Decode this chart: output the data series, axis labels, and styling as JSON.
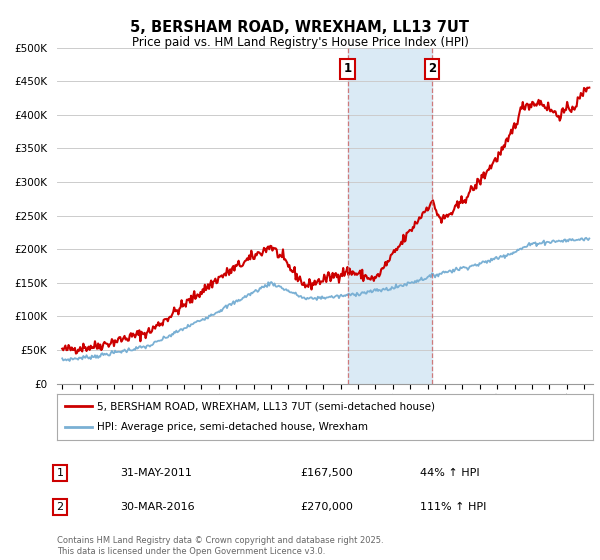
{
  "title": "5, BERSHAM ROAD, WREXHAM, LL13 7UT",
  "subtitle": "Price paid vs. HM Land Registry's House Price Index (HPI)",
  "ylabel_ticks": [
    "£0",
    "£50K",
    "£100K",
    "£150K",
    "£200K",
    "£250K",
    "£300K",
    "£350K",
    "£400K",
    "£450K",
    "£500K"
  ],
  "ytick_values": [
    0,
    50000,
    100000,
    150000,
    200000,
    250000,
    300000,
    350000,
    400000,
    450000,
    500000
  ],
  "ylim": [
    0,
    500000
  ],
  "xlim_start": 1994.7,
  "xlim_end": 2025.5,
  "xtick_years": [
    1995,
    1996,
    1997,
    1998,
    1999,
    2000,
    2001,
    2002,
    2003,
    2004,
    2005,
    2006,
    2007,
    2008,
    2009,
    2010,
    2011,
    2012,
    2013,
    2014,
    2015,
    2016,
    2017,
    2018,
    2019,
    2020,
    2021,
    2022,
    2023,
    2024,
    2025
  ],
  "event1_x": 2011.42,
  "event2_x": 2016.25,
  "event1_label": "1",
  "event2_label": "2",
  "event1_date": "31-MAY-2011",
  "event1_price": "£167,500",
  "event1_hpi": "44% ↑ HPI",
  "event2_date": "30-MAR-2016",
  "event2_price": "£270,000",
  "event2_hpi": "111% ↑ HPI",
  "legend_line1": "5, BERSHAM ROAD, WREXHAM, LL13 7UT (semi-detached house)",
  "legend_line2": "HPI: Average price, semi-detached house, Wrexham",
  "footer": "Contains HM Land Registry data © Crown copyright and database right 2025.\nThis data is licensed under the Open Government Licence v3.0.",
  "red_color": "#cc0000",
  "blue_color": "#7ab0d4",
  "shading_color": "#daeaf5",
  "background_color": "#ffffff",
  "grid_color": "#cccccc"
}
